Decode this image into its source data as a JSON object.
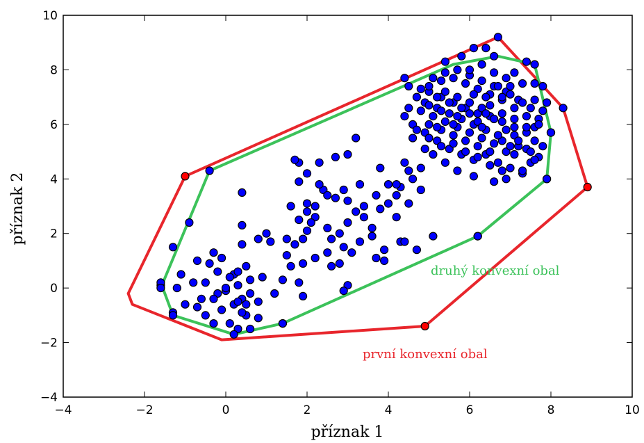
{
  "colors": {
    "first_hull": "#e8262c",
    "second_hull": "#3cc25a",
    "points": "#0000ff",
    "hull_vertices": "#ff0000",
    "frame": "#000000"
  },
  "chart_data": {
    "type": "scatter",
    "title": "",
    "xlabel": "příznak 1",
    "ylabel": "příznak 2",
    "xlim": [
      -4,
      10
    ],
    "ylim": [
      -4,
      10
    ],
    "xticks": [
      -4,
      -2,
      0,
      2,
      4,
      6,
      8,
      10
    ],
    "yticks": [
      -4,
      -2,
      0,
      2,
      4,
      6,
      8,
      10
    ],
    "xtick_labels": [
      "−4",
      "−2",
      "0",
      "2",
      "4",
      "6",
      "8",
      "10"
    ],
    "ytick_labels": [
      "−4",
      "−2",
      "0",
      "2",
      "4",
      "6",
      "8",
      "10"
    ],
    "grid": false,
    "points": [
      [
        -0.1,
        1.1
      ],
      [
        -0.7,
        1.0
      ],
      [
        -1.1,
        0.5
      ],
      [
        -0.5,
        0.2
      ],
      [
        0.2,
        0.5
      ],
      [
        0.5,
        0.8
      ],
      [
        0.8,
        1.8
      ],
      [
        1.0,
        2.0
      ],
      [
        0.4,
        2.3
      ],
      [
        -0.3,
        1.3
      ],
      [
        -1.3,
        1.5
      ],
      [
        -1.6,
        0.1
      ],
      [
        -1.3,
        -0.9
      ],
      [
        -1.0,
        -0.6
      ],
      [
        -0.7,
        -0.7
      ],
      [
        -0.5,
        -1.0
      ],
      [
        -0.3,
        -1.3
      ],
      [
        -0.1,
        -0.8
      ],
      [
        0.2,
        -0.6
      ],
      [
        0.4,
        -0.4
      ],
      [
        0.6,
        -0.2
      ],
      [
        0.3,
        0.1
      ],
      [
        0.0,
        -0.1
      ],
      [
        -0.2,
        -0.2
      ],
      [
        0.5,
        -1.0
      ],
      [
        0.8,
        -1.1
      ],
      [
        0.6,
        -1.5
      ],
      [
        0.3,
        -1.5
      ],
      [
        0.1,
        -1.3
      ],
      [
        0.4,
        -0.9
      ],
      [
        1.2,
        -0.2
      ],
      [
        0.9,
        0.4
      ],
      [
        0.6,
        0.3
      ],
      [
        0.3,
        0.6
      ],
      [
        0.1,
        0.4
      ],
      [
        -0.2,
        0.6
      ],
      [
        -0.4,
        0.9
      ],
      [
        -0.8,
        0.2
      ],
      [
        -1.2,
        0.0
      ],
      [
        -0.6,
        -0.4
      ],
      [
        0.4,
        3.5
      ],
      [
        0.4,
        1.6
      ],
      [
        1.4,
        0.3
      ],
      [
        1.4,
        -1.3
      ],
      [
        1.8,
        0.2
      ],
      [
        0.3,
        -0.5
      ],
      [
        0.0,
        0.0
      ],
      [
        0.5,
        -0.6
      ],
      [
        -0.3,
        -0.4
      ],
      [
        0.8,
        -0.5
      ],
      [
        -0.9,
        2.4
      ],
      [
        1.1,
        1.7
      ],
      [
        1.5,
        1.8
      ],
      [
        1.6,
        3.0
      ],
      [
        1.8,
        2.5
      ],
      [
        2.0,
        2.1
      ],
      [
        2.2,
        2.6
      ],
      [
        2.5,
        2.2
      ],
      [
        2.6,
        1.8
      ],
      [
        2.8,
        2.0
      ],
      [
        3.0,
        2.4
      ],
      [
        3.2,
        2.8
      ],
      [
        3.4,
        2.6
      ],
      [
        3.6,
        2.2
      ],
      [
        3.8,
        2.9
      ],
      [
        4.0,
        3.1
      ],
      [
        4.2,
        2.6
      ],
      [
        3.7,
        3.4
      ],
      [
        3.4,
        3.0
      ],
      [
        3.0,
        3.2
      ],
      [
        2.7,
        3.3
      ],
      [
        2.4,
        3.6
      ],
      [
        2.2,
        3.0
      ],
      [
        2.0,
        2.8
      ],
      [
        1.8,
        3.9
      ],
      [
        2.0,
        4.2
      ],
      [
        2.3,
        4.6
      ],
      [
        2.7,
        4.8
      ],
      [
        3.0,
        4.9
      ],
      [
        3.2,
        5.5
      ],
      [
        3.8,
        4.4
      ],
      [
        4.0,
        3.8
      ],
      [
        4.2,
        3.4
      ],
      [
        4.5,
        3.1
      ],
      [
        4.3,
        3.7
      ],
      [
        4.6,
        4.0
      ],
      [
        4.8,
        3.6
      ],
      [
        4.2,
        3.8
      ],
      [
        3.3,
        3.8
      ],
      [
        2.9,
        3.6
      ],
      [
        2.5,
        3.4
      ],
      [
        2.3,
        3.8
      ],
      [
        2.1,
        2.4
      ],
      [
        1.9,
        1.8
      ],
      [
        1.7,
        1.6
      ],
      [
        1.5,
        1.2
      ],
      [
        1.6,
        0.8
      ],
      [
        1.9,
        0.9
      ],
      [
        2.2,
        1.1
      ],
      [
        2.5,
        1.3
      ],
      [
        2.9,
        1.5
      ],
      [
        3.3,
        1.7
      ],
      [
        3.6,
        1.9
      ],
      [
        3.9,
        1.4
      ],
      [
        3.7,
        1.1
      ],
      [
        3.1,
        1.3
      ],
      [
        2.8,
        0.9
      ],
      [
        2.6,
        0.8
      ],
      [
        3.0,
        0.1
      ],
      [
        2.9,
        -0.1
      ],
      [
        1.9,
        -0.3
      ],
      [
        3.9,
        1.0
      ],
      [
        4.3,
        1.7
      ],
      [
        4.4,
        1.7
      ],
      [
        4.7,
        1.4
      ],
      [
        5.1,
        1.9
      ],
      [
        4.5,
        4.3
      ],
      [
        4.8,
        4.4
      ],
      [
        4.4,
        4.6
      ],
      [
        2.0,
        3.1
      ],
      [
        1.8,
        4.6
      ],
      [
        1.7,
        4.7
      ],
      [
        4.4,
        7.7
      ],
      [
        5.0,
        7.2
      ],
      [
        5.3,
        7.0
      ],
      [
        5.6,
        6.8
      ],
      [
        5.9,
        6.6
      ],
      [
        6.2,
        6.4
      ],
      [
        6.5,
        6.3
      ],
      [
        6.8,
        6.1
      ],
      [
        7.1,
        5.9
      ],
      [
        7.4,
        5.7
      ],
      [
        7.6,
        5.4
      ],
      [
        7.2,
        5.2
      ],
      [
        6.9,
        5.0
      ],
      [
        6.6,
        5.3
      ],
      [
        6.3,
        5.5
      ],
      [
        6.0,
        5.7
      ],
      [
        5.7,
        5.9
      ],
      [
        5.4,
        6.1
      ],
      [
        5.1,
        6.3
      ],
      [
        4.8,
        6.5
      ],
      [
        4.6,
        6.0
      ],
      [
        4.9,
        5.7
      ],
      [
        5.2,
        5.4
      ],
      [
        5.5,
        5.1
      ],
      [
        5.8,
        4.9
      ],
      [
        6.1,
        4.7
      ],
      [
        6.4,
        4.9
      ],
      [
        6.7,
        4.6
      ],
      [
        7.0,
        4.4
      ],
      [
        7.3,
        4.2
      ],
      [
        7.5,
        4.6
      ],
      [
        7.7,
        4.8
      ],
      [
        7.8,
        5.2
      ],
      [
        7.6,
        5.9
      ],
      [
        7.4,
        6.3
      ],
      [
        7.1,
        6.6
      ],
      [
        6.8,
        6.9
      ],
      [
        6.5,
        7.1
      ],
      [
        6.2,
        7.3
      ],
      [
        5.9,
        7.5
      ],
      [
        5.6,
        7.7
      ],
      [
        5.3,
        7.6
      ],
      [
        5.0,
        7.4
      ],
      [
        4.7,
        7.0
      ],
      [
        4.5,
        6.6
      ],
      [
        4.4,
        6.3
      ],
      [
        5.0,
        6.0
      ],
      [
        5.3,
        5.8
      ],
      [
        5.6,
        5.6
      ],
      [
        5.9,
        5.4
      ],
      [
        6.2,
        5.2
      ],
      [
        6.5,
        5.0
      ],
      [
        6.8,
        5.4
      ],
      [
        7.1,
        5.6
      ],
      [
        7.4,
        5.9
      ],
      [
        7.7,
        6.2
      ],
      [
        7.5,
        6.6
      ],
      [
        7.2,
        6.9
      ],
      [
        6.9,
        7.2
      ],
      [
        6.6,
        7.4
      ],
      [
        6.3,
        7.6
      ],
      [
        6.0,
        7.8
      ],
      [
        5.7,
        8.0
      ],
      [
        5.4,
        7.9
      ],
      [
        5.1,
        7.7
      ],
      [
        4.8,
        7.3
      ],
      [
        5.2,
        6.6
      ],
      [
        5.5,
        6.4
      ],
      [
        5.8,
        6.2
      ],
      [
        6.1,
        6.0
      ],
      [
        6.4,
        5.8
      ],
      [
        6.7,
        5.6
      ],
      [
        7.0,
        5.2
      ],
      [
        6.6,
        6.2
      ],
      [
        6.3,
        6.6
      ],
      [
        6.0,
        6.8
      ],
      [
        5.7,
        7.0
      ],
      [
        5.4,
        7.2
      ],
      [
        6.2,
        6.1
      ],
      [
        6.5,
        6.7
      ],
      [
        6.8,
        6.4
      ],
      [
        7.1,
        6.2
      ],
      [
        7.3,
        6.8
      ],
      [
        7.0,
        7.1
      ],
      [
        6.7,
        7.4
      ],
      [
        6.4,
        7.0
      ],
      [
        6.1,
        7.1
      ],
      [
        5.8,
        6.6
      ],
      [
        5.5,
        6.8
      ],
      [
        5.2,
        7.0
      ],
      [
        4.9,
        6.8
      ],
      [
        5.6,
        5.3
      ],
      [
        5.9,
        5.0
      ],
      [
        6.2,
        4.8
      ],
      [
        6.5,
        4.5
      ],
      [
        6.8,
        4.3
      ],
      [
        7.1,
        4.9
      ],
      [
        7.4,
        5.1
      ],
      [
        5.3,
        5.2
      ],
      [
        5.0,
        5.5
      ],
      [
        4.7,
        5.8
      ],
      [
        4.5,
        7.4
      ],
      [
        6.0,
        8.0
      ],
      [
        6.3,
        8.2
      ],
      [
        6.6,
        8.5
      ],
      [
        6.1,
        8.8
      ],
      [
        5.4,
        8.3
      ],
      [
        7.1,
        7.9
      ],
      [
        7.4,
        8.3
      ],
      [
        7.6,
        7.5
      ],
      [
        7.8,
        7.4
      ],
      [
        7.9,
        6.8
      ],
      [
        8.0,
        5.7
      ],
      [
        7.9,
        4.0
      ],
      [
        7.3,
        4.3
      ],
      [
        6.9,
        4.0
      ],
      [
        6.6,
        3.9
      ],
      [
        6.1,
        4.1
      ],
      [
        5.7,
        4.3
      ],
      [
        5.4,
        4.6
      ],
      [
        5.1,
        4.9
      ],
      [
        4.9,
        5.1
      ],
      [
        7.6,
        6.9
      ],
      [
        7.8,
        6.5
      ],
      [
        7.7,
        6.0
      ],
      [
        6.9,
        7.7
      ],
      [
        6.6,
        7.9
      ],
      [
        7.3,
        7.5
      ],
      [
        7.0,
        7.4
      ],
      [
        6.8,
        7.0
      ],
      [
        6.4,
        6.4
      ],
      [
        6.0,
        6.4
      ],
      [
        5.7,
        6.3
      ],
      [
        5.3,
        6.5
      ],
      [
        5.0,
        6.7
      ],
      [
        4.6,
        5.5
      ],
      [
        5.2,
        5.9
      ],
      [
        5.6,
        6.0
      ],
      [
        6.3,
        5.9
      ],
      [
        6.9,
        5.8
      ],
      [
        7.2,
        5.4
      ],
      [
        7.5,
        5.0
      ],
      [
        7.6,
        4.7
      ],
      [
        6.2,
        1.9
      ],
      [
        6.7,
        9.2
      ],
      [
        8.3,
        6.6
      ],
      [
        5.8,
        8.5
      ],
      [
        6.4,
        8.8
      ]
    ],
    "first_hull": {
      "label": "první konvexní obal",
      "vertices": [
        [
          -1.0,
          4.1
        ],
        [
          6.7,
          9.2
        ],
        [
          8.3,
          6.6
        ],
        [
          8.9,
          3.7
        ],
        [
          4.9,
          -1.4
        ],
        [
          -0.1,
          -1.9
        ],
        [
          -2.3,
          -0.6
        ],
        [
          -2.4,
          -0.2
        ]
      ],
      "outlier_points": [
        [
          -1.0,
          4.1
        ],
        [
          8.9,
          3.7
        ],
        [
          4.9,
          -1.4
        ]
      ]
    },
    "second_hull": {
      "label": "druhý konvexní obal",
      "vertices": [
        [
          -0.4,
          4.3
        ],
        [
          5.6,
          8.2
        ],
        [
          6.7,
          8.5
        ],
        [
          7.6,
          8.2
        ],
        [
          8.0,
          5.7
        ],
        [
          7.9,
          4.0
        ],
        [
          6.2,
          1.9
        ],
        [
          1.4,
          -1.3
        ],
        [
          0.2,
          -1.7
        ],
        [
          -1.3,
          -1.0
        ],
        [
          -1.6,
          0.2
        ],
        [
          -1.6,
          0.0
        ]
      ],
      "vertex_points": [
        [
          -0.4,
          4.3
        ],
        [
          -1.6,
          0.2
        ],
        [
          -1.6,
          0.0
        ],
        [
          -1.3,
          -1.0
        ],
        [
          0.2,
          -1.7
        ],
        [
          1.4,
          -1.3
        ],
        [
          6.2,
          1.9
        ],
        [
          7.9,
          4.0
        ],
        [
          8.0,
          5.7
        ],
        [
          7.6,
          8.2
        ]
      ]
    }
  }
}
